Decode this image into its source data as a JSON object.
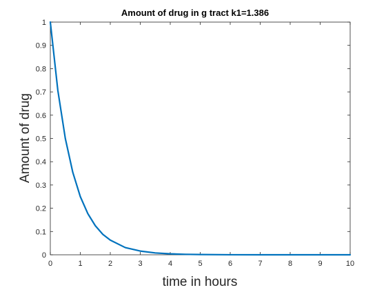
{
  "chart_data": {
    "type": "line",
    "title": "Amount of drug in g tract k1=1.386",
    "xlabel": "time in hours",
    "ylabel": "Amount of drug",
    "xlim": [
      0,
      10
    ],
    "ylim": [
      0,
      1
    ],
    "x_ticks": [
      "0",
      "1",
      "2",
      "3",
      "4",
      "5",
      "6",
      "7",
      "8",
      "9",
      "10"
    ],
    "y_ticks": [
      "0",
      "0.1",
      "0.2",
      "0.3",
      "0.4",
      "0.5",
      "0.6",
      "0.7",
      "0.8",
      "0.9",
      "1"
    ],
    "grid": false,
    "line_color": "#0072bd",
    "series": [
      {
        "x": [
          0,
          0.25,
          0.5,
          0.75,
          1,
          1.25,
          1.5,
          1.75,
          2,
          2.5,
          3,
          3.5,
          4,
          4.5,
          5,
          6,
          7,
          8,
          9,
          10
        ],
        "values": [
          1,
          0.707,
          0.5,
          0.354,
          0.25,
          0.177,
          0.125,
          0.088,
          0.063,
          0.031,
          0.016,
          0.008,
          0.004,
          0.002,
          0.001,
          0.0002,
          0.0001,
          0,
          0,
          0
        ]
      }
    ]
  }
}
